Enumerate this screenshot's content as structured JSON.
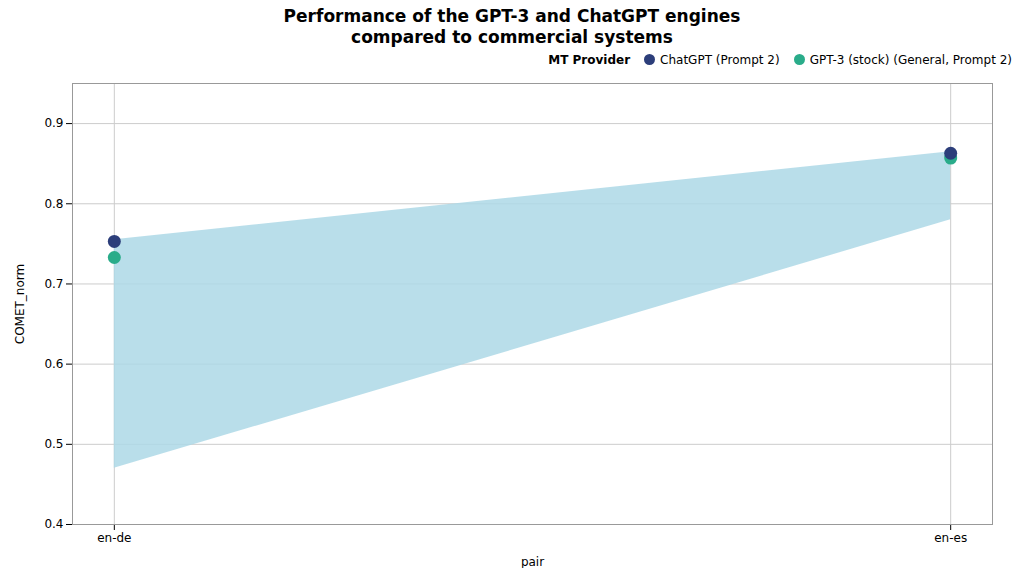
{
  "chart_data": {
    "type": "scatter",
    "title": "Performance of the GPT-3 and ChatGPT engines\ncompared to commercial systems",
    "xlabel": "pair",
    "ylabel": "COMET_norm",
    "x": [
      0,
      10
    ],
    "series": [
      {
        "name": "ChatGPT (Prompt 2)",
        "color": "#2c3e7a",
        "values": [
          0.753,
          0.863
        ],
        "marker": "circle"
      },
      {
        "name": "GPT-3 (stock) (General, Prompt 2)",
        "color": "#2aac8a",
        "values": [
          0.733,
          0.857
        ],
        "marker": "circle"
      },
      {
        "type": "area",
        "color": "#add8e6",
        "lower": [
          0.47,
          0.78
        ],
        "upper": [
          0.755,
          0.865
        ]
      }
    ],
    "xlim": [
      -0.5,
      10.5
    ],
    "xticks": [
      {
        "value": 0,
        "label": "en-de"
      },
      {
        "value": 10,
        "label": "en-es"
      }
    ],
    "ylim": [
      0.4,
      0.95
    ],
    "yticks": [
      0.4,
      0.5,
      0.6,
      0.7,
      0.8,
      0.9
    ],
    "grid": true,
    "legend": "upper right",
    "legend_title": "MT Provider"
  }
}
